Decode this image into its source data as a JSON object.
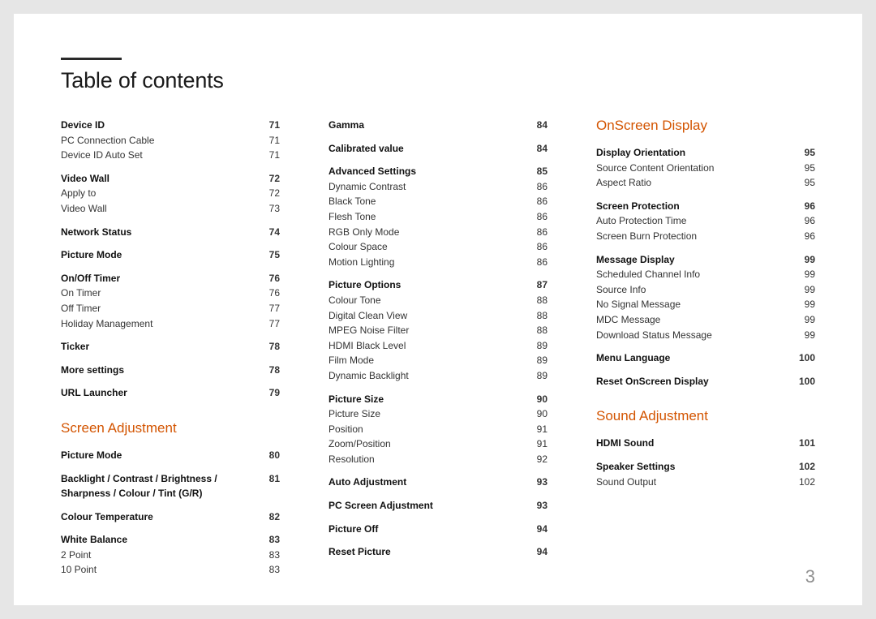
{
  "title": "Table of contents",
  "page_number": "3",
  "colors": {
    "heading": "#d35400",
    "text": "#333",
    "title": "#1a1a1a",
    "page_bg": "#ffffff",
    "outer_bg": "#e6e6e6"
  },
  "cols": [
    {
      "blocks": [
        {
          "type": "group",
          "rows": [
            {
              "l": "Device ID",
              "p": "71",
              "b": true
            },
            {
              "l": "PC Connection Cable",
              "p": "71"
            },
            {
              "l": "Device ID Auto Set",
              "p": "71"
            }
          ]
        },
        {
          "type": "group",
          "rows": [
            {
              "l": "Video Wall",
              "p": "72",
              "b": true
            },
            {
              "l": "Apply to",
              "p": "72"
            },
            {
              "l": "Video Wall",
              "p": "73"
            }
          ]
        },
        {
          "type": "group",
          "rows": [
            {
              "l": "Network Status",
              "p": "74",
              "b": true
            }
          ]
        },
        {
          "type": "group",
          "rows": [
            {
              "l": "Picture Mode",
              "p": "75",
              "b": true
            }
          ]
        },
        {
          "type": "group",
          "rows": [
            {
              "l": "On/Off Timer",
              "p": "76",
              "b": true
            },
            {
              "l": "On Timer",
              "p": "76"
            },
            {
              "l": "Off Timer",
              "p": "77"
            },
            {
              "l": "Holiday Management",
              "p": "77"
            }
          ]
        },
        {
          "type": "group",
          "rows": [
            {
              "l": "Ticker",
              "p": "78",
              "b": true
            }
          ]
        },
        {
          "type": "group",
          "rows": [
            {
              "l": "More settings",
              "p": "78",
              "b": true
            }
          ]
        },
        {
          "type": "group",
          "rows": [
            {
              "l": "URL Launcher",
              "p": "79",
              "b": true
            }
          ]
        },
        {
          "type": "heading",
          "text": "Screen Adjustment"
        },
        {
          "type": "group",
          "rows": [
            {
              "l": "Picture Mode",
              "p": "80",
              "b": true
            }
          ]
        },
        {
          "type": "group",
          "rows": [
            {
              "l": "Backlight / Contrast / Brightness / Sharpness / Colour / Tint (G/R)",
              "p": "81",
              "b": true
            }
          ]
        },
        {
          "type": "group",
          "rows": [
            {
              "l": "Colour Temperature",
              "p": "82",
              "b": true
            }
          ]
        },
        {
          "type": "group",
          "rows": [
            {
              "l": "White Balance",
              "p": "83",
              "b": true
            },
            {
              "l": "2 Point",
              "p": "83"
            },
            {
              "l": "10 Point",
              "p": "83"
            }
          ]
        }
      ]
    },
    {
      "blocks": [
        {
          "type": "group",
          "rows": [
            {
              "l": "Gamma",
              "p": "84",
              "b": true
            }
          ]
        },
        {
          "type": "group",
          "rows": [
            {
              "l": "Calibrated value",
              "p": "84",
              "b": true
            }
          ]
        },
        {
          "type": "group",
          "rows": [
            {
              "l": "Advanced Settings",
              "p": "85",
              "b": true
            },
            {
              "l": "Dynamic Contrast",
              "p": "86"
            },
            {
              "l": "Black Tone",
              "p": "86"
            },
            {
              "l": "Flesh Tone",
              "p": "86"
            },
            {
              "l": "RGB Only Mode",
              "p": "86"
            },
            {
              "l": "Colour Space",
              "p": "86"
            },
            {
              "l": "Motion Lighting",
              "p": "86"
            }
          ]
        },
        {
          "type": "group",
          "rows": [
            {
              "l": "Picture Options",
              "p": "87",
              "b": true
            },
            {
              "l": "Colour Tone",
              "p": "88"
            },
            {
              "l": "Digital Clean View",
              "p": "88"
            },
            {
              "l": "MPEG Noise Filter",
              "p": "88"
            },
            {
              "l": "HDMI Black Level",
              "p": "89"
            },
            {
              "l": "Film Mode",
              "p": "89"
            },
            {
              "l": "Dynamic Backlight",
              "p": "89"
            }
          ]
        },
        {
          "type": "group",
          "rows": [
            {
              "l": "Picture Size",
              "p": "90",
              "b": true
            },
            {
              "l": "Picture Size",
              "p": "90"
            },
            {
              "l": "Position",
              "p": "91"
            },
            {
              "l": "Zoom/Position",
              "p": "91"
            },
            {
              "l": "Resolution",
              "p": "92"
            }
          ]
        },
        {
          "type": "group",
          "rows": [
            {
              "l": "Auto Adjustment",
              "p": "93",
              "b": true
            }
          ]
        },
        {
          "type": "group",
          "rows": [
            {
              "l": "PC Screen Adjustment",
              "p": "93",
              "b": true
            }
          ]
        },
        {
          "type": "group",
          "rows": [
            {
              "l": "Picture Off",
              "p": "94",
              "b": true
            }
          ]
        },
        {
          "type": "group",
          "rows": [
            {
              "l": "Reset Picture",
              "p": "94",
              "b": true
            }
          ]
        }
      ]
    },
    {
      "blocks": [
        {
          "type": "heading",
          "text": "OnScreen Display",
          "first": true
        },
        {
          "type": "group",
          "rows": [
            {
              "l": "Display Orientation",
              "p": "95",
              "b": true
            },
            {
              "l": "Source Content Orientation",
              "p": "95"
            },
            {
              "l": "Aspect Ratio",
              "p": "95"
            }
          ]
        },
        {
          "type": "group",
          "rows": [
            {
              "l": "Screen Protection",
              "p": "96",
              "b": true
            },
            {
              "l": "Auto Protection Time",
              "p": "96"
            },
            {
              "l": "Screen Burn Protection",
              "p": "96"
            }
          ]
        },
        {
          "type": "group",
          "rows": [
            {
              "l": "Message Display",
              "p": "99",
              "b": true
            },
            {
              "l": "Scheduled Channel Info",
              "p": "99"
            },
            {
              "l": "Source Info",
              "p": "99"
            },
            {
              "l": "No Signal Message",
              "p": "99"
            },
            {
              "l": "MDC Message",
              "p": "99"
            },
            {
              "l": "Download Status Message",
              "p": "99"
            }
          ]
        },
        {
          "type": "group",
          "rows": [
            {
              "l": "Menu Language",
              "p": "100",
              "b": true
            }
          ]
        },
        {
          "type": "group",
          "rows": [
            {
              "l": "Reset OnScreen Display",
              "p": "100",
              "b": true
            }
          ]
        },
        {
          "type": "heading",
          "text": "Sound Adjustment"
        },
        {
          "type": "group",
          "rows": [
            {
              "l": "HDMI Sound",
              "p": "101",
              "b": true
            }
          ]
        },
        {
          "type": "group",
          "rows": [
            {
              "l": "Speaker Settings",
              "p": "102",
              "b": true
            },
            {
              "l": "Sound Output",
              "p": "102"
            }
          ]
        }
      ]
    }
  ]
}
